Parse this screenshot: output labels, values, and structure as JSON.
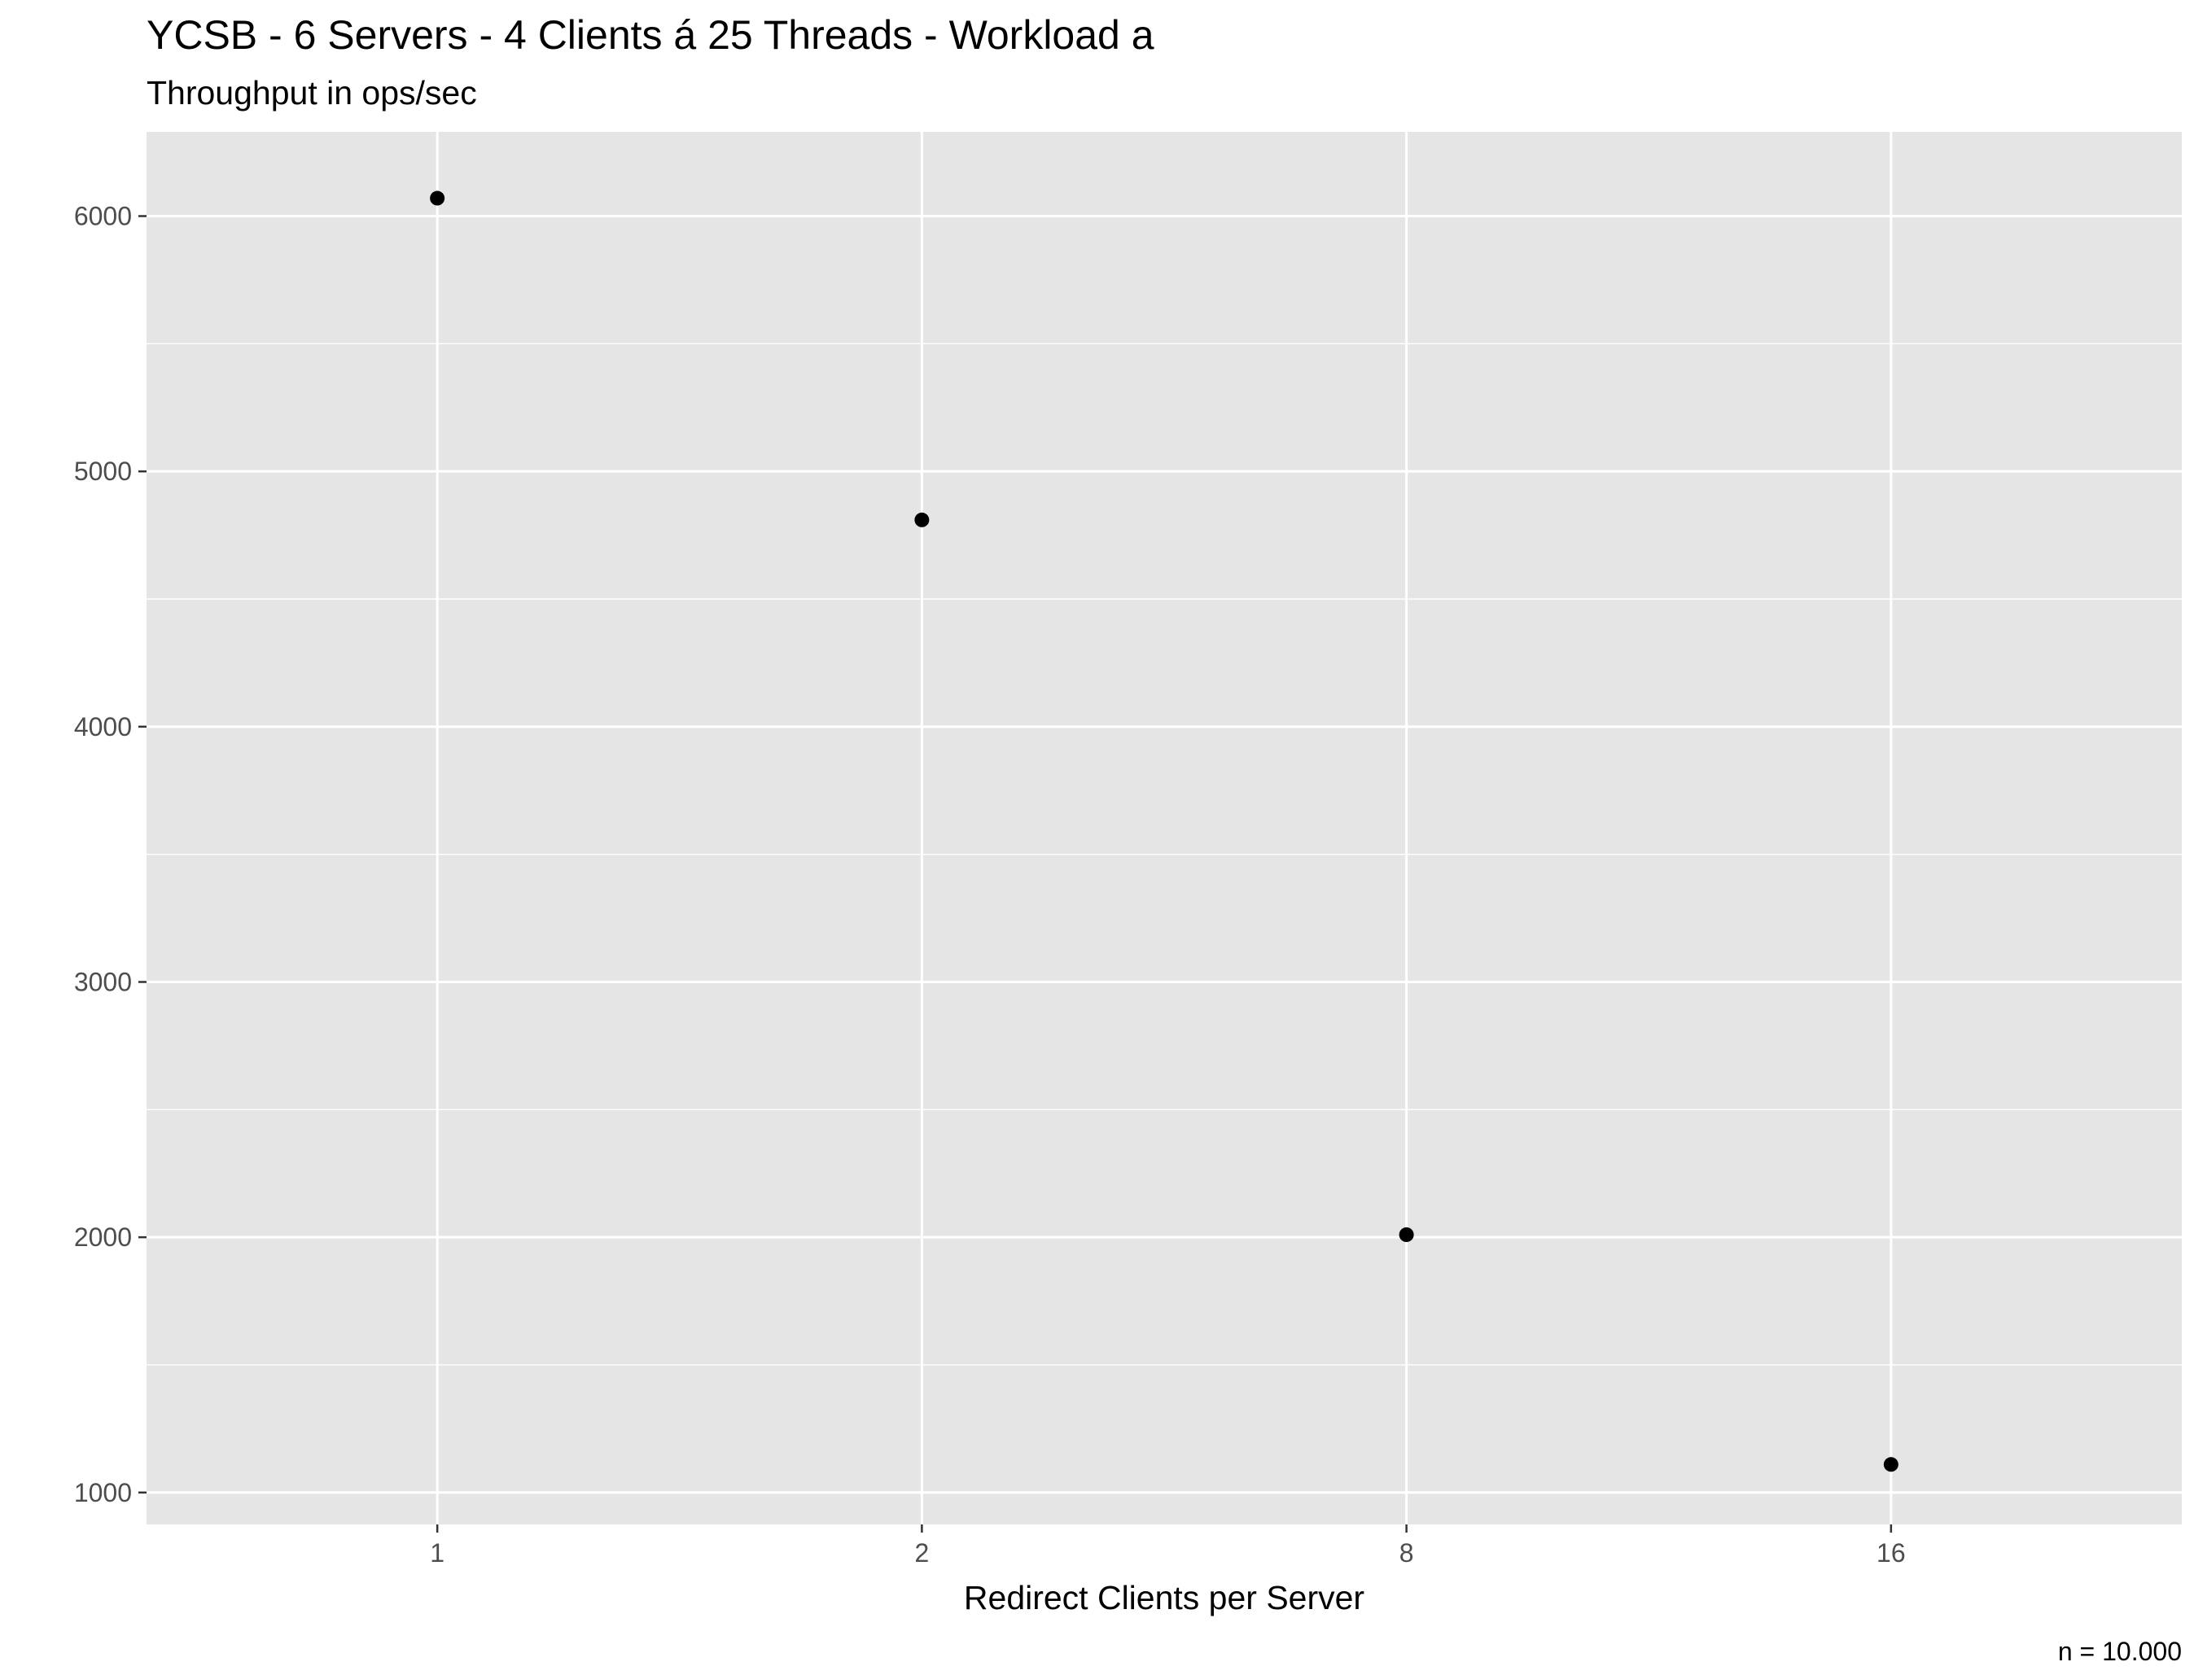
{
  "chart_data": {
    "type": "scatter",
    "title": "YCSB - 6 Servers - 4 Clients á 25 Threads - Workload a",
    "subtitle": "Throughput in ops/sec",
    "xlabel": "Redirect Clients per Server",
    "ylabel": "",
    "caption": "n = 10.000",
    "categories": [
      "1",
      "2",
      "8",
      "16"
    ],
    "values": [
      6070,
      4810,
      2010,
      1110
    ],
    "ylim": [
      875,
      6330
    ],
    "yticks": [
      1000,
      2000,
      3000,
      4000,
      5000,
      6000
    ],
    "ytick_labels": [
      "1000",
      "2000",
      "3000",
      "4000",
      "5000",
      "6000"
    ],
    "grid": true,
    "legend": "none",
    "colors": {
      "panel": "#e5e5e5",
      "grid": "#ffffff",
      "point": "#000000",
      "tick_text": "#4d4d4d",
      "tick_mark": "#333333"
    }
  }
}
